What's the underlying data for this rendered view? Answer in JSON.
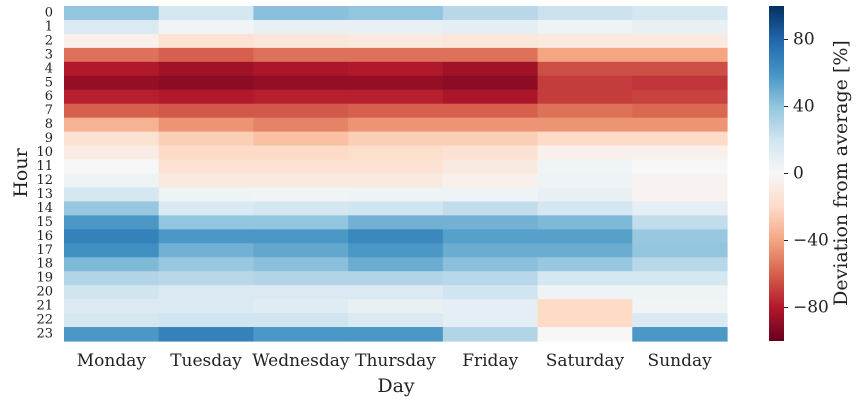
{
  "chart_data": {
    "type": "heatmap",
    "xlabel": "Day",
    "ylabel": "Hour",
    "colorbar_label": "Deviation from average [%]",
    "colormap": "RdBu (red = negative, blue = positive)",
    "vmin": -100,
    "vmax": 100,
    "colorbar_ticks": [
      "80",
      "40",
      "0",
      "−40",
      "−80"
    ],
    "colorbar_tick_values": [
      80,
      40,
      0,
      -40,
      -80
    ],
    "x_categories": [
      "Monday",
      "Tuesday",
      "Wednesday",
      "Thursday",
      "Friday",
      "Saturday",
      "Sunday"
    ],
    "y_categories": [
      "0",
      "1",
      "2",
      "3",
      "4",
      "5",
      "6",
      "7",
      "8",
      "9",
      "10",
      "11",
      "12",
      "13",
      "14",
      "15",
      "16",
      "17",
      "18",
      "19",
      "20",
      "21",
      "22",
      "23"
    ],
    "values": [
      [
        40,
        18,
        42,
        40,
        28,
        22,
        18
      ],
      [
        15,
        3,
        8,
        8,
        10,
        5,
        8
      ],
      [
        -5,
        -15,
        -12,
        -10,
        -12,
        -10,
        -10
      ],
      [
        -55,
        -60,
        -55,
        -55,
        -55,
        -40,
        -40
      ],
      [
        -80,
        -85,
        -82,
        -80,
        -85,
        -65,
        -65
      ],
      [
        -88,
        -90,
        -88,
        -88,
        -90,
        -70,
        -72
      ],
      [
        -78,
        -80,
        -78,
        -78,
        -82,
        -70,
        -68
      ],
      [
        -60,
        -62,
        -62,
        -60,
        -60,
        -55,
        -58
      ],
      [
        -35,
        -45,
        -50,
        -45,
        -45,
        -45,
        -45
      ],
      [
        -15,
        -25,
        -30,
        -25,
        -25,
        -20,
        -20
      ],
      [
        -8,
        -20,
        -20,
        -18,
        -15,
        -5,
        -5
      ],
      [
        0,
        -15,
        -15,
        -15,
        -10,
        3,
        0
      ],
      [
        5,
        -10,
        -10,
        -10,
        -5,
        5,
        -3
      ],
      [
        18,
        5,
        3,
        5,
        5,
        8,
        -3
      ],
      [
        38,
        15,
        18,
        20,
        25,
        18,
        10
      ],
      [
        58,
        40,
        40,
        48,
        48,
        45,
        25
      ],
      [
        68,
        58,
        58,
        65,
        55,
        55,
        38
      ],
      [
        62,
        48,
        52,
        58,
        50,
        50,
        40
      ],
      [
        45,
        38,
        42,
        50,
        42,
        38,
        28
      ],
      [
        30,
        28,
        30,
        30,
        28,
        18,
        18
      ],
      [
        20,
        15,
        15,
        15,
        20,
        5,
        5
      ],
      [
        15,
        15,
        12,
        8,
        10,
        -20,
        3
      ],
      [
        18,
        20,
        20,
        15,
        10,
        -20,
        15
      ],
      [
        58,
        68,
        58,
        58,
        30,
        0,
        58
      ]
    ]
  }
}
